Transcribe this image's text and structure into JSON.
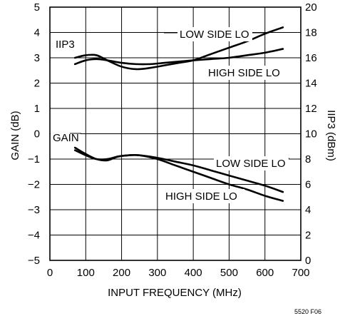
{
  "chart_data": {
    "type": "line",
    "xlabel": "INPUT FREQUENCY (MHz)",
    "ylabel_left": "GAIN (dB)",
    "ylabel_right": "IIP3 (dBm)",
    "xlim": [
      0,
      700
    ],
    "ylim_left": [
      -5,
      5
    ],
    "ylim_right": [
      0,
      20
    ],
    "x_ticks": [
      0,
      100,
      200,
      300,
      400,
      500,
      600,
      700
    ],
    "y_left_ticks": [
      -5,
      -4,
      -3,
      -2,
      -1,
      0,
      1,
      2,
      3,
      4,
      5
    ],
    "y_right_ticks": [
      0,
      2,
      4,
      6,
      8,
      10,
      12,
      14,
      16,
      18,
      20
    ],
    "grid": true,
    "group_labels": {
      "iip3": "IIP3",
      "gain": "GAIN"
    },
    "series": [
      {
        "name": "LOW SIDE LO",
        "group": "iip3",
        "axis": "right",
        "x": [
          70,
          100,
          130,
          160,
          200,
          240,
          280,
          320,
          360,
          400,
          450,
          500,
          550,
          600,
          650
        ],
        "y": [
          16.0,
          16.2,
          16.2,
          15.8,
          15.3,
          15.1,
          15.2,
          15.4,
          15.6,
          15.8,
          16.3,
          16.8,
          17.3,
          17.9,
          18.4
        ]
      },
      {
        "name": "HIGH SIDE LO",
        "group": "iip3",
        "axis": "right",
        "x": [
          70,
          100,
          130,
          160,
          200,
          240,
          280,
          320,
          360,
          400,
          450,
          500,
          550,
          600,
          650
        ],
        "y": [
          15.5,
          15.8,
          15.9,
          15.8,
          15.6,
          15.5,
          15.5,
          15.6,
          15.7,
          15.8,
          15.9,
          16.0,
          16.2,
          16.4,
          16.7
        ]
      },
      {
        "name": "LOW SIDE LO",
        "group": "gain",
        "axis": "left",
        "x": [
          70,
          100,
          130,
          160,
          190,
          220,
          250,
          300,
          350,
          400,
          450,
          500,
          550,
          600,
          650
        ],
        "y": [
          -0.65,
          -0.85,
          -1.0,
          -1.0,
          -0.9,
          -0.85,
          -0.85,
          -0.95,
          -1.1,
          -1.25,
          -1.45,
          -1.65,
          -1.85,
          -2.05,
          -2.3
        ]
      },
      {
        "name": "HIGH SIDE LO",
        "group": "gain",
        "axis": "left",
        "x": [
          70,
          100,
          130,
          160,
          190,
          220,
          250,
          300,
          350,
          400,
          450,
          500,
          550,
          600,
          650
        ],
        "y": [
          -0.55,
          -0.8,
          -1.0,
          -1.05,
          -0.9,
          -0.85,
          -0.85,
          -1.0,
          -1.25,
          -1.5,
          -1.75,
          -2.0,
          -2.2,
          -2.45,
          -2.65
        ]
      }
    ]
  },
  "figure_id": "5520 F06"
}
